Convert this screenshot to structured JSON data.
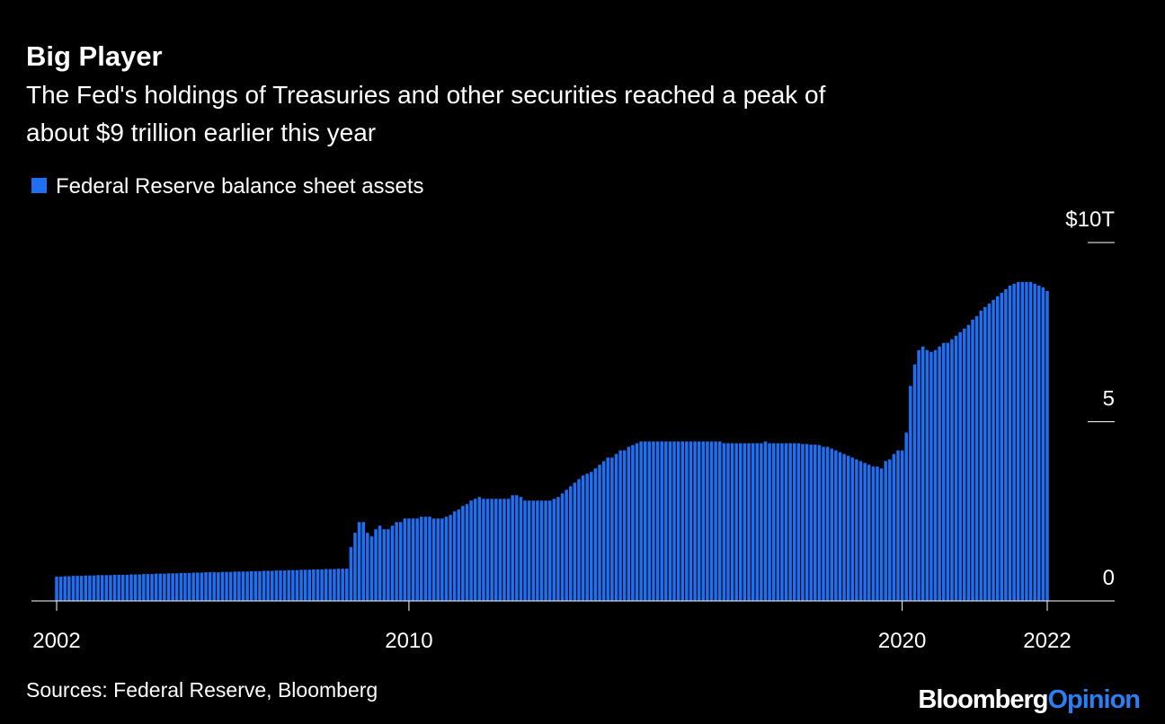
{
  "chart_data": {
    "type": "bar",
    "title": "Big Player",
    "subtitle": [
      "The Fed's holdings of Treasuries and other securities reached a peak of",
      "about $9 trillion earlier this year"
    ],
    "legend": "Federal Reserve balance sheet assets",
    "source": "Sources: Federal Reserve, Bloomberg",
    "brand": [
      "Bloomberg",
      "Opinion"
    ],
    "color": "#1f6ff2",
    "ylim": [
      0,
      10
    ],
    "yticks": [
      0,
      5,
      {
        "value": 10,
        "label": "$10T"
      }
    ],
    "categories": [
      "2002",
      null,
      null,
      null,
      null,
      null,
      null,
      null,
      null,
      null,
      null,
      null,
      null,
      null,
      null,
      null,
      null,
      null,
      null,
      null,
      null,
      null,
      null,
      null,
      null,
      null,
      null,
      null,
      null,
      null,
      null,
      null,
      null,
      null,
      null,
      null,
      null,
      null,
      null,
      null,
      null,
      null,
      null,
      null,
      null,
      null,
      null,
      null,
      null,
      null,
      null,
      null,
      null,
      null,
      null,
      null,
      null,
      null,
      null,
      null,
      null,
      null,
      null,
      null,
      null,
      null,
      null,
      null,
      null,
      null,
      null,
      null,
      null,
      null,
      null,
      null,
      null,
      null,
      null,
      null,
      null,
      null,
      null,
      null,
      null,
      "2010",
      null,
      null,
      null,
      null,
      null,
      null,
      null,
      null,
      null,
      null,
      null,
      null,
      null,
      null,
      null,
      null,
      null,
      null,
      null,
      null,
      null,
      null,
      null,
      null,
      null,
      null,
      null,
      null,
      null,
      null,
      null,
      null,
      null,
      null,
      null,
      null,
      null,
      null,
      null,
      null,
      null,
      null,
      null,
      null,
      null,
      null,
      null,
      null,
      null,
      null,
      null,
      null,
      null,
      null,
      null,
      null,
      null,
      null,
      null,
      null,
      null,
      null,
      null,
      null,
      null,
      null,
      null,
      null,
      null,
      null,
      null,
      null,
      null,
      null,
      null,
      null,
      null,
      null,
      null,
      null,
      null,
      null,
      null,
      null,
      null,
      null,
      null,
      null,
      null,
      null,
      null,
      null,
      null,
      null,
      null,
      null,
      null,
      null,
      null,
      null,
      null,
      null,
      null,
      null,
      null,
      null,
      null,
      null,
      null,
      null,
      null,
      null,
      null,
      null,
      null,
      null,
      null,
      null,
      "2020",
      null,
      null,
      null,
      null,
      null,
      null,
      null,
      null,
      null,
      null,
      null,
      null,
      null,
      null,
      null,
      null,
      null,
      null,
      null,
      null,
      null,
      null,
      null,
      null,
      null,
      null,
      null,
      null,
      null,
      null,
      null,
      null,
      null,
      null,
      "2022"
    ],
    "values": [
      0.68,
      0.68,
      0.69,
      0.69,
      0.7,
      0.7,
      0.7,
      0.71,
      0.71,
      0.71,
      0.72,
      0.72,
      0.72,
      0.72,
      0.73,
      0.73,
      0.73,
      0.73,
      0.74,
      0.74,
      0.74,
      0.75,
      0.75,
      0.75,
      0.76,
      0.76,
      0.76,
      0.77,
      0.77,
      0.77,
      0.78,
      0.78,
      0.78,
      0.79,
      0.79,
      0.79,
      0.8,
      0.8,
      0.8,
      0.8,
      0.81,
      0.81,
      0.81,
      0.82,
      0.82,
      0.82,
      0.82,
      0.83,
      0.83,
      0.83,
      0.84,
      0.84,
      0.84,
      0.85,
      0.85,
      0.85,
      0.86,
      0.86,
      0.86,
      0.87,
      0.87,
      0.87,
      0.88,
      0.88,
      0.88,
      0.89,
      0.89,
      0.89,
      0.9,
      0.9,
      0.9,
      1.5,
      1.9,
      2.2,
      2.2,
      1.9,
      1.8,
      2.0,
      2.1,
      2.0,
      2.0,
      2.1,
      2.2,
      2.2,
      2.3,
      2.3,
      2.3,
      2.3,
      2.35,
      2.35,
      2.35,
      2.3,
      2.3,
      2.3,
      2.35,
      2.4,
      2.5,
      2.55,
      2.65,
      2.7,
      2.8,
      2.85,
      2.9,
      2.85,
      2.85,
      2.85,
      2.85,
      2.85,
      2.85,
      2.85,
      2.95,
      2.95,
      2.9,
      2.8,
      2.8,
      2.8,
      2.8,
      2.8,
      2.8,
      2.8,
      2.85,
      2.9,
      3.0,
      3.1,
      3.2,
      3.3,
      3.4,
      3.5,
      3.55,
      3.6,
      3.7,
      3.8,
      3.9,
      4.0,
      4.0,
      4.1,
      4.2,
      4.2,
      4.3,
      4.35,
      4.4,
      4.45,
      4.45,
      4.45,
      4.45,
      4.45,
      4.45,
      4.45,
      4.45,
      4.45,
      4.45,
      4.45,
      4.45,
      4.45,
      4.45,
      4.45,
      4.45,
      4.45,
      4.45,
      4.45,
      4.45,
      4.4,
      4.4,
      4.4,
      4.4,
      4.4,
      4.4,
      4.4,
      4.4,
      4.4,
      4.4,
      4.45,
      4.4,
      4.4,
      4.4,
      4.4,
      4.4,
      4.4,
      4.4,
      4.4,
      4.38,
      4.38,
      4.36,
      4.36,
      4.35,
      4.3,
      4.3,
      4.25,
      4.2,
      4.15,
      4.1,
      4.05,
      4.0,
      3.95,
      3.9,
      3.85,
      3.8,
      3.75,
      3.75,
      3.7,
      3.9,
      3.95,
      4.1,
      4.2,
      4.2,
      4.7,
      6.0,
      6.6,
      7.0,
      7.1,
      7.0,
      6.95,
      7.0,
      7.1,
      7.2,
      7.2,
      7.3,
      7.4,
      7.5,
      7.6,
      7.7,
      7.85,
      7.95,
      8.1,
      8.2,
      8.3,
      8.4,
      8.5,
      8.6,
      8.7,
      8.8,
      8.85,
      8.9,
      8.9,
      8.9,
      8.9,
      8.85,
      8.8,
      8.75,
      8.65
    ]
  }
}
